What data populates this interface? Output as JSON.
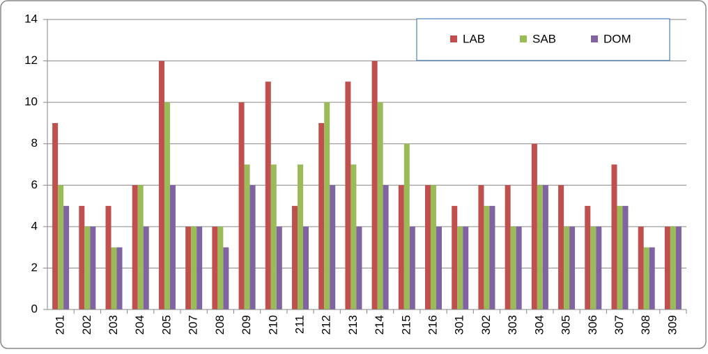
{
  "chart_data": {
    "type": "bar",
    "categories": [
      "201",
      "202",
      "203",
      "204",
      "205",
      "207",
      "208",
      "209",
      "210",
      "211",
      "212",
      "213",
      "214",
      "215",
      "216",
      "301",
      "302",
      "303",
      "304",
      "305",
      "306",
      "307",
      "308",
      "309"
    ],
    "series": [
      {
        "name": "LAB",
        "color": "#c0504d",
        "values": [
          9,
          5,
          5,
          6,
          12,
          4,
          4,
          10,
          11,
          5,
          9,
          11,
          12,
          6,
          6,
          5,
          6,
          6,
          8,
          6,
          5,
          7,
          4,
          4
        ]
      },
      {
        "name": "SAB",
        "color": "#9bbb59",
        "values": [
          6,
          4,
          3,
          6,
          10,
          4,
          4,
          7,
          7,
          7,
          10,
          7,
          10,
          8,
          6,
          4,
          5,
          4,
          6,
          4,
          4,
          5,
          3,
          4
        ]
      },
      {
        "name": "DOM",
        "color": "#8064a2",
        "values": [
          5,
          4,
          3,
          4,
          6,
          4,
          3,
          6,
          4,
          4,
          6,
          4,
          6,
          4,
          4,
          4,
          5,
          4,
          6,
          4,
          4,
          5,
          3,
          4
        ]
      }
    ],
    "ylim": [
      0,
      14
    ],
    "yticks": [
      0,
      2,
      4,
      6,
      8,
      10,
      12,
      14
    ],
    "grid": true,
    "legend": "top-right"
  }
}
